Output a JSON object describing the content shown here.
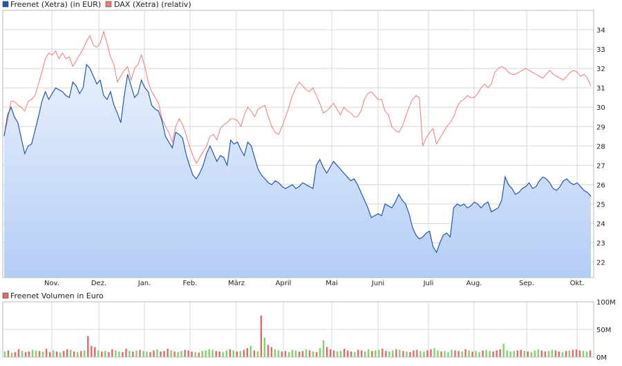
{
  "legend": {
    "freenet": "Freenet (Xetra) (in EUR)",
    "dax": "DAX (Xetra) (relativ)",
    "volume": "Freenet Volumen in Euro"
  },
  "colors": {
    "freenet_line": "#2457a8",
    "dax_line": "#f07a7a",
    "area_top": "#e8f0fc",
    "area_bottom": "#b4cdf6",
    "volume_up": "#7ed36a",
    "volume_down": "#e06a6a",
    "grid": "#d8d8d8"
  },
  "chart_data": [
    {
      "type": "line",
      "ylim": [
        21.2,
        35.0
      ],
      "y_ticks": [
        "22",
        "23",
        "24",
        "25",
        "26",
        "27",
        "28",
        "29",
        "30",
        "31",
        "32",
        "33",
        "34"
      ],
      "x_ticks": [
        "Nov.",
        "Dez.",
        "Jan.",
        "Feb.",
        "März",
        "April",
        "Mai",
        "Juni",
        "Juli",
        "Aug.",
        "Sep.",
        "Okt."
      ],
      "series": [
        {
          "name": "Freenet (Xetra) (in EUR)",
          "values": [
            28.5,
            29.6,
            30.0,
            29.5,
            29.2,
            28.4,
            27.6,
            28.0,
            28.1,
            28.8,
            29.5,
            30.3,
            30.8,
            30.4,
            30.7,
            31.0,
            30.9,
            30.8,
            30.6,
            30.5,
            31.3,
            31.1,
            30.7,
            31.0,
            32.2,
            32.0,
            31.6,
            31.2,
            31.4,
            30.6,
            30.4,
            30.8,
            30.1,
            29.7,
            29.2,
            30.6,
            31.7,
            31.1,
            30.5,
            30.7,
            31.4,
            31.0,
            30.8,
            30.1,
            29.9,
            29.8,
            29.3,
            28.5,
            28.2,
            27.9,
            28.7,
            28.6,
            28.4,
            27.6,
            27.0,
            26.5,
            26.3,
            26.6,
            27.0,
            27.6,
            28.0,
            27.6,
            27.2,
            27.5,
            27.4,
            27.0,
            28.3,
            28.1,
            28.2,
            27.8,
            27.5,
            28.2,
            28.0,
            27.4,
            26.8,
            26.5,
            26.3,
            26.1,
            26.0,
            26.2,
            26.1,
            25.9,
            25.8,
            25.9,
            26.0,
            25.8,
            25.9,
            26.1,
            26.0,
            25.9,
            25.8,
            27.0,
            27.3,
            26.9,
            26.6,
            26.9,
            27.2,
            27.0,
            26.8,
            26.6,
            26.4,
            26.2,
            26.3,
            26.0,
            25.6,
            25.2,
            24.8,
            24.3,
            24.4,
            24.5,
            24.4,
            25.0,
            24.9,
            24.8,
            25.1,
            25.5,
            25.2,
            25.0,
            24.5,
            23.8,
            23.4,
            23.2,
            23.3,
            23.5,
            23.6,
            22.8,
            22.5,
            23.0,
            23.4,
            23.5,
            23.3,
            24.8,
            25.0,
            24.9,
            25.0,
            24.8,
            24.9,
            25.1,
            25.0,
            24.8,
            25.0,
            25.1,
            24.6,
            24.7,
            24.8,
            25.2,
            26.4,
            26.0,
            25.8,
            25.5,
            25.6,
            25.8,
            25.9,
            26.1,
            25.8,
            25.9,
            26.2,
            26.4,
            26.3,
            26.1,
            25.8,
            25.7,
            25.9,
            26.2,
            26.3,
            26.1,
            26.0,
            26.1,
            25.9,
            25.7,
            25.6,
            25.4
          ],
          "last": 25.4
        },
        {
          "name": "DAX (Xetra) (relativ)",
          "values": [
            28.6,
            29.3,
            30.3,
            30.3,
            30.1,
            30.0,
            29.8,
            30.3,
            30.4,
            30.6,
            31.2,
            31.8,
            32.5,
            32.8,
            32.7,
            32.9,
            32.5,
            32.8,
            32.5,
            32.6,
            32.1,
            32.4,
            32.7,
            33.0,
            33.4,
            33.7,
            33.2,
            33.1,
            33.3,
            33.9,
            33.3,
            32.6,
            32.2,
            31.3,
            31.6,
            31.9,
            32.1,
            31.4,
            32.0,
            32.2,
            32.7,
            32.1,
            31.3,
            30.8,
            30.5,
            30.2,
            29.4,
            29.0,
            28.7,
            28.2,
            29.0,
            29.4,
            29.1,
            28.6,
            28.0,
            27.5,
            27.1,
            27.4,
            27.7,
            28.0,
            28.5,
            28.6,
            28.3,
            28.9,
            29.1,
            29.2,
            29.4,
            29.4,
            29.3,
            29.0,
            29.6,
            30.0,
            29.8,
            29.5,
            29.9,
            30.0,
            30.1,
            29.5,
            29.0,
            28.7,
            28.6,
            29.0,
            29.5,
            30.0,
            30.6,
            31.0,
            31.3,
            31.1,
            30.9,
            30.8,
            31.0,
            30.6,
            30.2,
            29.7,
            29.8,
            30.0,
            30.2,
            29.9,
            29.6,
            30.0,
            29.8,
            29.7,
            29.5,
            29.5,
            29.8,
            30.4,
            30.7,
            30.8,
            30.6,
            30.4,
            30.4,
            29.8,
            29.6,
            29.0,
            28.8,
            28.7,
            29.0,
            29.5,
            30.0,
            30.4,
            30.6,
            30.5,
            28.0,
            28.4,
            28.7,
            28.9,
            28.1,
            28.4,
            28.7,
            29.0,
            29.2,
            29.5,
            30.0,
            30.3,
            30.4,
            30.6,
            30.5,
            30.5,
            30.7,
            31.0,
            31.2,
            31.0,
            31.2,
            31.8,
            32.0,
            32.1,
            32.0,
            31.8,
            31.7,
            31.7,
            31.8,
            31.9,
            32.0,
            31.9,
            31.8,
            31.7,
            31.6,
            31.5,
            31.7,
            31.9,
            31.7,
            31.6,
            31.5,
            31.4,
            31.6,
            31.8,
            31.9,
            31.8,
            31.6,
            31.7,
            31.5,
            31.1
          ],
          "last": 31.1
        }
      ]
    },
    {
      "type": "bar",
      "ylim": [
        0,
        100
      ],
      "y_ticks": [
        "0M",
        "50M",
        "100M"
      ],
      "series": [
        {
          "name": "Freenet Volumen in Euro",
          "values": [
            10,
            12,
            8,
            9,
            14,
            11,
            9,
            10,
            13,
            12,
            11,
            10,
            15,
            9,
            12,
            10,
            8,
            11,
            14,
            13,
            10,
            9,
            11,
            12,
            38,
            20,
            18,
            12,
            10,
            11,
            9,
            14,
            12,
            10,
            9,
            15,
            11,
            10,
            12,
            13,
            11,
            10,
            9,
            12,
            14,
            10,
            11,
            15,
            12,
            10,
            9,
            11,
            13,
            12,
            10,
            9,
            8,
            11,
            12,
            14,
            13,
            11,
            10,
            9,
            12,
            14,
            12,
            10,
            11,
            13,
            16,
            20,
            12,
            10,
            75,
            35,
            22,
            18,
            14,
            12,
            10,
            11,
            9,
            13,
            12,
            10,
            11,
            14,
            12,
            10,
            9,
            16,
            30,
            18,
            14,
            12,
            10,
            11,
            15,
            12,
            10,
            9,
            13,
            12,
            10,
            14,
            11,
            12,
            13,
            15,
            11,
            10,
            12,
            14,
            13,
            11,
            10,
            9,
            12,
            13,
            11,
            10,
            12,
            14,
            16,
            12,
            10,
            11,
            9,
            13,
            12,
            11,
            10,
            14,
            12,
            10,
            11,
            9,
            12,
            13,
            11,
            10,
            12,
            14,
            24,
            12,
            10,
            11,
            12,
            13,
            11,
            10,
            9,
            12,
            14,
            12,
            10,
            11,
            13,
            12,
            10,
            9,
            11,
            12,
            13,
            14,
            12,
            11,
            10,
            12
          ],
          "up_flags": [
            1,
            0,
            1,
            0,
            0,
            1,
            0,
            0,
            1,
            1,
            0,
            1,
            0,
            0,
            1,
            0,
            1,
            0,
            0,
            1,
            0,
            1,
            0,
            1,
            0,
            0,
            0,
            1,
            0,
            1,
            0,
            0,
            1,
            1,
            0,
            0,
            1,
            0,
            1,
            0,
            1,
            1,
            0,
            0,
            1,
            0,
            0,
            0,
            1,
            0,
            1,
            1,
            0,
            0,
            0,
            1,
            0,
            1,
            1,
            1,
            1,
            0,
            0,
            1,
            1,
            0,
            1,
            0,
            1,
            0,
            0,
            1,
            0,
            1,
            0,
            1,
            0,
            0,
            1,
            1,
            0,
            0,
            1,
            1,
            1,
            0,
            0,
            1,
            0,
            1,
            0,
            1,
            1,
            0,
            0,
            0,
            1,
            1,
            0,
            0,
            0,
            1,
            0,
            0,
            1,
            1,
            0,
            1,
            1,
            0,
            0,
            1,
            1,
            0,
            1,
            0,
            1,
            0,
            0,
            0,
            1,
            1,
            0,
            0,
            1,
            1,
            0,
            1,
            1,
            1,
            0,
            0,
            1,
            0,
            1,
            0,
            1,
            1,
            0,
            1,
            1,
            0,
            0,
            0,
            1,
            1,
            1,
            1,
            0,
            0,
            1,
            0,
            1,
            1,
            1,
            0,
            0,
            1,
            1,
            0,
            0,
            1,
            0,
            1,
            0,
            0,
            0,
            1,
            1,
            0,
            0,
            0
          ]
        }
      ]
    }
  ]
}
